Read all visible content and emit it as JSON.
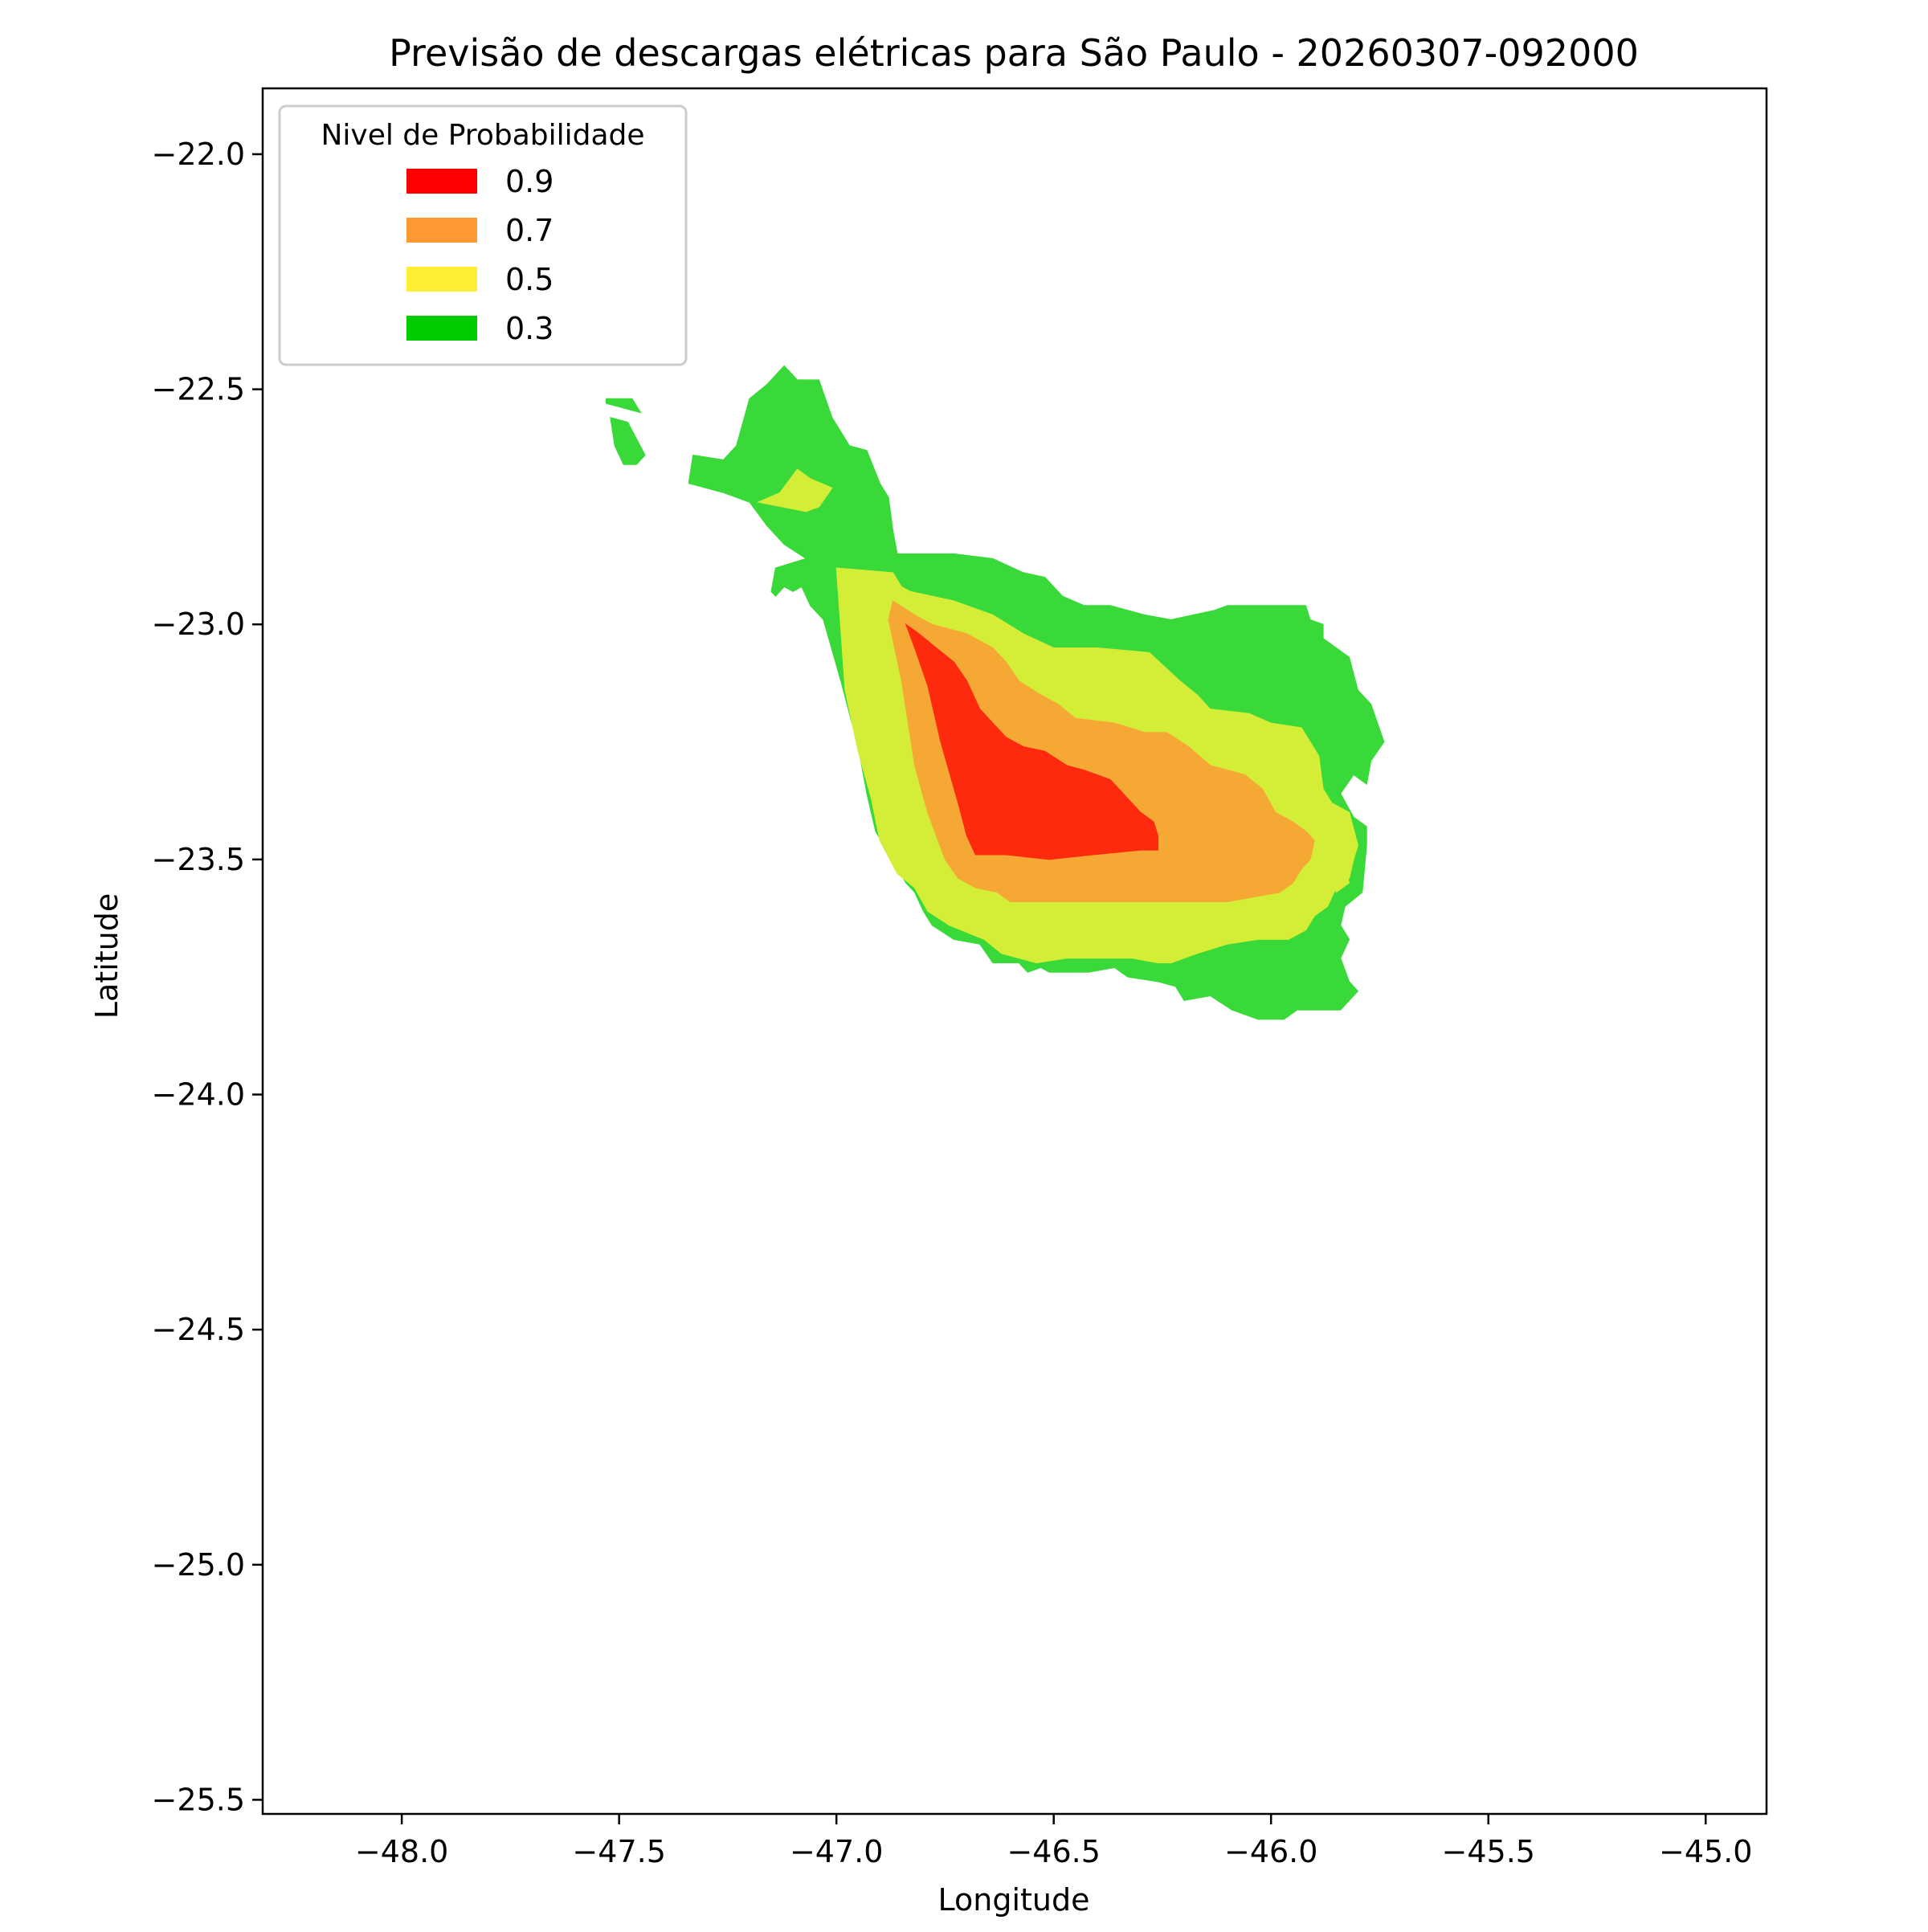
{
  "chart_data": {
    "type": "filled-contour",
    "title": "Previsão de descargas elétricas para São Paulo - 20260307-092000",
    "xlabel": "Longitude",
    "ylabel": "Latitude",
    "xlim": [
      -48.32,
      -44.86
    ],
    "ylim": [
      -25.53,
      -21.86
    ],
    "xticks": [
      -48.0,
      -47.5,
      -47.0,
      -46.5,
      -46.0,
      -45.5,
      -45.0
    ],
    "xtick_labels": [
      "−48.0",
      "−47.5",
      "−47.0",
      "−46.5",
      "−46.0",
      "−45.5",
      "−45.0"
    ],
    "yticks": [
      -22.0,
      -22.5,
      -23.0,
      -23.5,
      -24.0,
      -24.5,
      -25.0,
      -25.5
    ],
    "ytick_labels": [
      "−22.0",
      "−22.5",
      "−23.0",
      "−23.5",
      "−24.0",
      "−24.5",
      "−25.0",
      "−25.5"
    ],
    "grid": false,
    "legend": {
      "title": "Nivel de Probabilidade",
      "placement": "top-left",
      "entries": [
        {
          "label": "0.9",
          "color": "#ff0000"
        },
        {
          "label": "0.7",
          "color": "#ff9933"
        },
        {
          "label": "0.5",
          "color": "#ffee33"
        },
        {
          "label": "0.3",
          "color": "#00cc00"
        }
      ]
    },
    "levels": [
      {
        "level": 0.3,
        "fill": "#38d938",
        "polygons": [
          [
            [
              -47.53,
              -22.52
            ],
            [
              -47.47,
              -22.52
            ],
            [
              -47.45,
              -22.55
            ],
            [
              -47.53,
              -22.53
            ]
          ],
          [
            [
              -47.52,
              -22.56
            ],
            [
              -47.48,
              -22.57
            ],
            [
              -47.44,
              -22.64
            ],
            [
              -47.46,
              -22.66
            ],
            [
              -47.49,
              -22.66
            ],
            [
              -47.51,
              -22.62
            ]
          ],
          [
            [
              -47.33,
              -22.64
            ],
            [
              -47.26,
              -22.65
            ],
            [
              -47.23,
              -22.62
            ],
            [
              -47.2,
              -22.52
            ],
            [
              -47.16,
              -22.49
            ],
            [
              -47.12,
              -22.45
            ],
            [
              -47.09,
              -22.48
            ],
            [
              -47.04,
              -22.48
            ],
            [
              -47.01,
              -22.56
            ],
            [
              -46.97,
              -22.62
            ],
            [
              -46.93,
              -22.63
            ],
            [
              -46.9,
              -22.7
            ],
            [
              -46.88,
              -22.73
            ],
            [
              -46.87,
              -22.8
            ],
            [
              -46.86,
              -22.85
            ],
            [
              -46.73,
              -22.85
            ],
            [
              -46.64,
              -22.86
            ],
            [
              -46.57,
              -22.89
            ],
            [
              -46.52,
              -22.9
            ],
            [
              -46.48,
              -22.94
            ],
            [
              -46.43,
              -22.96
            ],
            [
              -46.37,
              -22.96
            ],
            [
              -46.29,
              -22.98
            ],
            [
              -46.23,
              -22.99
            ],
            [
              -46.18,
              -22.98
            ],
            [
              -46.13,
              -22.97
            ],
            [
              -46.1,
              -22.96
            ],
            [
              -45.99,
              -22.96
            ],
            [
              -45.92,
              -22.96
            ],
            [
              -45.91,
              -22.99
            ],
            [
              -45.88,
              -23.0
            ],
            [
              -45.88,
              -23.03
            ],
            [
              -45.82,
              -23.07
            ],
            [
              -45.8,
              -23.14
            ],
            [
              -45.77,
              -23.17
            ],
            [
              -45.74,
              -23.25
            ],
            [
              -45.77,
              -23.29
            ],
            [
              -45.78,
              -23.34
            ],
            [
              -45.81,
              -23.32
            ],
            [
              -45.84,
              -23.36
            ],
            [
              -45.81,
              -23.41
            ],
            [
              -45.78,
              -23.43
            ],
            [
              -45.78,
              -23.47
            ],
            [
              -45.79,
              -23.57
            ],
            [
              -45.83,
              -23.6
            ],
            [
              -45.84,
              -23.64
            ],
            [
              -45.82,
              -23.67
            ],
            [
              -45.84,
              -23.71
            ],
            [
              -45.82,
              -23.76
            ],
            [
              -45.8,
              -23.78
            ],
            [
              -45.83,
              -23.81
            ],
            [
              -45.84,
              -23.82
            ],
            [
              -45.94,
              -23.82
            ],
            [
              -45.97,
              -23.84
            ],
            [
              -46.03,
              -23.84
            ],
            [
              -46.09,
              -23.82
            ],
            [
              -46.14,
              -23.79
            ],
            [
              -46.2,
              -23.8
            ],
            [
              -46.22,
              -23.77
            ],
            [
              -46.26,
              -23.76
            ],
            [
              -46.33,
              -23.75
            ],
            [
              -46.36,
              -23.73
            ],
            [
              -46.42,
              -23.74
            ],
            [
              -46.51,
              -23.74
            ],
            [
              -46.53,
              -23.73
            ],
            [
              -46.56,
              -23.74
            ],
            [
              -46.58,
              -23.72
            ],
            [
              -46.64,
              -23.72
            ],
            [
              -46.67,
              -23.68
            ],
            [
              -46.73,
              -23.67
            ],
            [
              -46.78,
              -23.64
            ],
            [
              -46.8,
              -23.61
            ],
            [
              -46.82,
              -23.57
            ],
            [
              -46.84,
              -23.55
            ],
            [
              -46.91,
              -23.44
            ],
            [
              -46.93,
              -23.36
            ],
            [
              -46.95,
              -23.26
            ],
            [
              -46.99,
              -23.12
            ],
            [
              -47.03,
              -22.99
            ],
            [
              -47.06,
              -22.96
            ],
            [
              -47.08,
              -22.92
            ],
            [
              -47.1,
              -22.93
            ],
            [
              -47.12,
              -22.92
            ],
            [
              -47.14,
              -22.94
            ],
            [
              -47.15,
              -22.93
            ],
            [
              -47.14,
              -22.88
            ],
            [
              -47.07,
              -22.86
            ],
            [
              -47.12,
              -22.83
            ],
            [
              -47.16,
              -22.79
            ],
            [
              -47.2,
              -22.74
            ],
            [
              -47.26,
              -22.72
            ],
            [
              -47.34,
              -22.7
            ]
          ]
        ]
      },
      {
        "level": 0.5,
        "fill": "#d4ee38",
        "polygons": [
          [
            [
              -47.18,
              -22.74
            ],
            [
              -47.13,
              -22.72
            ],
            [
              -47.09,
              -22.67
            ],
            [
              -47.06,
              -22.69
            ],
            [
              -47.01,
              -22.71
            ],
            [
              -47.04,
              -22.75
            ],
            [
              -47.07,
              -22.76
            ]
          ],
          [
            [
              -47.0,
              -22.88
            ],
            [
              -46.87,
              -22.89
            ],
            [
              -46.85,
              -22.92
            ],
            [
              -46.83,
              -22.93
            ],
            [
              -46.73,
              -22.95
            ],
            [
              -46.64,
              -22.98
            ],
            [
              -46.57,
              -23.02
            ],
            [
              -46.5,
              -23.05
            ],
            [
              -46.45,
              -23.05
            ],
            [
              -46.4,
              -23.05
            ],
            [
              -46.28,
              -23.06
            ],
            [
              -46.21,
              -23.12
            ],
            [
              -46.17,
              -23.15
            ],
            [
              -46.14,
              -23.18
            ],
            [
              -46.05,
              -23.19
            ],
            [
              -46.0,
              -23.21
            ],
            [
              -45.93,
              -23.22
            ],
            [
              -45.89,
              -23.28
            ],
            [
              -45.88,
              -23.35
            ],
            [
              -45.86,
              -23.38
            ],
            [
              -45.82,
              -23.4
            ],
            [
              -45.8,
              -23.47
            ],
            [
              -45.81,
              -23.5
            ],
            [
              -45.82,
              -23.54
            ],
            [
              -45.85,
              -23.56
            ],
            [
              -45.87,
              -23.6
            ],
            [
              -45.9,
              -23.62
            ],
            [
              -45.92,
              -23.65
            ],
            [
              -45.96,
              -23.67
            ],
            [
              -46.03,
              -23.67
            ],
            [
              -46.1,
              -23.68
            ],
            [
              -46.17,
              -23.7
            ],
            [
              -46.23,
              -23.72
            ],
            [
              -46.26,
              -23.72
            ],
            [
              -46.32,
              -23.71
            ],
            [
              -46.4,
              -23.71
            ],
            [
              -46.47,
              -23.71
            ],
            [
              -46.54,
              -23.72
            ],
            [
              -46.62,
              -23.7
            ],
            [
              -46.66,
              -23.67
            ],
            [
              -46.74,
              -23.64
            ],
            [
              -46.79,
              -23.61
            ],
            [
              -46.82,
              -23.56
            ],
            [
              -46.86,
              -23.53
            ],
            [
              -46.9,
              -23.46
            ],
            [
              -46.92,
              -23.37
            ],
            [
              -46.95,
              -23.27
            ],
            [
              -46.98,
              -23.14
            ]
          ],
          [
            [
              -45.86,
              -23.54
            ],
            [
              -45.83,
              -23.52
            ],
            [
              -45.82,
              -23.55
            ],
            [
              -45.85,
              -23.57
            ]
          ]
        ]
      },
      {
        "level": 0.7,
        "fill": "#f5a834",
        "polygons": [
          [
            [
              -46.87,
              -22.95
            ],
            [
              -46.82,
              -22.98
            ],
            [
              -46.78,
              -23.0
            ],
            [
              -46.7,
              -23.02
            ],
            [
              -46.64,
              -23.05
            ],
            [
              -46.61,
              -23.08
            ],
            [
              -46.58,
              -23.12
            ],
            [
              -46.53,
              -23.15
            ],
            [
              -46.49,
              -23.17
            ],
            [
              -46.45,
              -23.2
            ],
            [
              -46.36,
              -23.21
            ],
            [
              -46.29,
              -23.23
            ],
            [
              -46.24,
              -23.23
            ],
            [
              -46.19,
              -23.26
            ],
            [
              -46.14,
              -23.3
            ],
            [
              -46.06,
              -23.32
            ],
            [
              -46.02,
              -23.35
            ],
            [
              -45.99,
              -23.4
            ],
            [
              -45.95,
              -23.42
            ],
            [
              -45.92,
              -23.44
            ],
            [
              -45.9,
              -23.46
            ],
            [
              -45.91,
              -23.5
            ],
            [
              -45.93,
              -23.52
            ],
            [
              -45.95,
              -23.55
            ],
            [
              -45.98,
              -23.57
            ],
            [
              -46.1,
              -23.59
            ],
            [
              -46.19,
              -23.59
            ],
            [
              -46.3,
              -23.59
            ],
            [
              -46.39,
              -23.59
            ],
            [
              -46.47,
              -23.59
            ],
            [
              -46.55,
              -23.59
            ],
            [
              -46.6,
              -23.59
            ],
            [
              -46.63,
              -23.57
            ],
            [
              -46.68,
              -23.56
            ],
            [
              -46.72,
              -23.54
            ],
            [
              -46.75,
              -23.5
            ],
            [
              -46.79,
              -23.4
            ],
            [
              -46.82,
              -23.3
            ],
            [
              -46.85,
              -23.12
            ],
            [
              -46.88,
              -22.99
            ]
          ]
        ]
      },
      {
        "level": 0.9,
        "fill": "#fe2a0e",
        "polygons": [
          [
            [
              -46.84,
              -23.0
            ],
            [
              -46.81,
              -23.02
            ],
            [
              -46.77,
              -23.05
            ],
            [
              -46.73,
              -23.08
            ],
            [
              -46.7,
              -23.12
            ],
            [
              -46.67,
              -23.18
            ],
            [
              -46.64,
              -23.21
            ],
            [
              -46.61,
              -23.24
            ],
            [
              -46.57,
              -23.26
            ],
            [
              -46.52,
              -23.27
            ],
            [
              -46.47,
              -23.3
            ],
            [
              -46.43,
              -23.31
            ],
            [
              -46.37,
              -23.33
            ],
            [
              -46.33,
              -23.37
            ],
            [
              -46.3,
              -23.4
            ],
            [
              -46.27,
              -23.42
            ],
            [
              -46.26,
              -23.45
            ],
            [
              -46.26,
              -23.48
            ],
            [
              -46.3,
              -23.48
            ],
            [
              -46.41,
              -23.49
            ],
            [
              -46.51,
              -23.5
            ],
            [
              -46.61,
              -23.49
            ],
            [
              -46.68,
              -23.49
            ],
            [
              -46.7,
              -23.45
            ],
            [
              -46.72,
              -23.38
            ],
            [
              -46.76,
              -23.25
            ],
            [
              -46.79,
              -23.13
            ],
            [
              -46.82,
              -23.05
            ]
          ]
        ]
      }
    ]
  }
}
